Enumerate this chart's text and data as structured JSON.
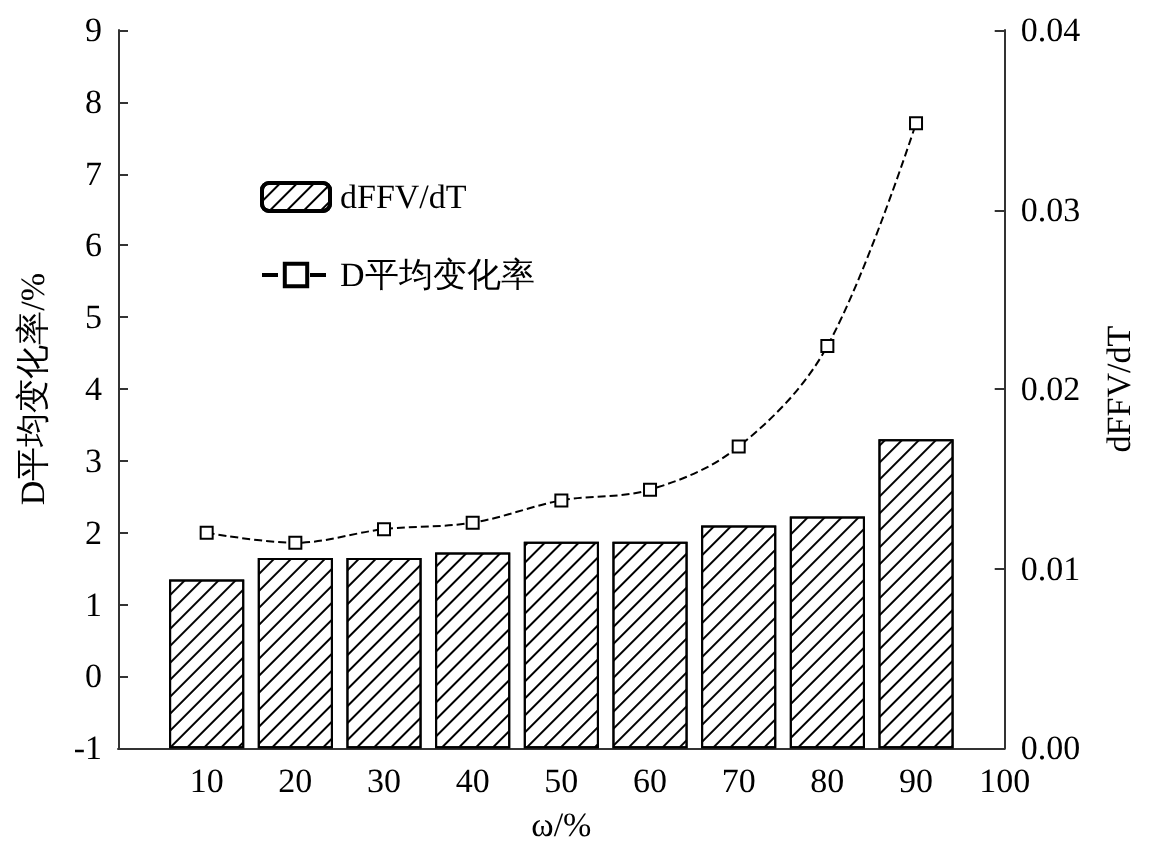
{
  "chart_data": {
    "type": "bar",
    "xlabel": "ω/%",
    "ylabel": "D平均变化率/%",
    "y2label": "dFFV/dT",
    "x": [
      10,
      20,
      30,
      40,
      50,
      60,
      70,
      80,
      90
    ],
    "xlim": [
      0,
      100
    ],
    "xticks": [
      10,
      20,
      30,
      40,
      50,
      60,
      70,
      80,
      90,
      100
    ],
    "ylim": [
      -1,
      9
    ],
    "yticks": [
      -1,
      0,
      1,
      2,
      3,
      4,
      5,
      6,
      7,
      8,
      9
    ],
    "y2lim": [
      0,
      0.04
    ],
    "y2ticks": [
      {
        "value": 0,
        "label": "0.00"
      },
      {
        "value": 0.01,
        "label": "0.01"
      },
      {
        "value": 0.02,
        "label": "0.02"
      },
      {
        "value": 0.03,
        "label": "0.03"
      },
      {
        "value": 0.04,
        "label": "0.04"
      }
    ],
    "series": [
      {
        "name": "dFFV/dT",
        "axis": "y2",
        "color": "#000000",
        "values": [
          0.0094,
          0.0106,
          0.0106,
          0.0109,
          0.0115,
          0.0115,
          0.0124,
          0.0129,
          0.0172
        ]
      },
      {
        "name": "D平均变化率",
        "type": "line",
        "axis": "y",
        "color": "#000000",
        "marker": "square",
        "line_style": "dashed",
        "values": [
          2.0,
          1.86,
          2.05,
          2.14,
          2.45,
          2.6,
          3.2,
          4.6,
          7.7
        ]
      }
    ],
    "legend": "top left",
    "grid": false
  }
}
